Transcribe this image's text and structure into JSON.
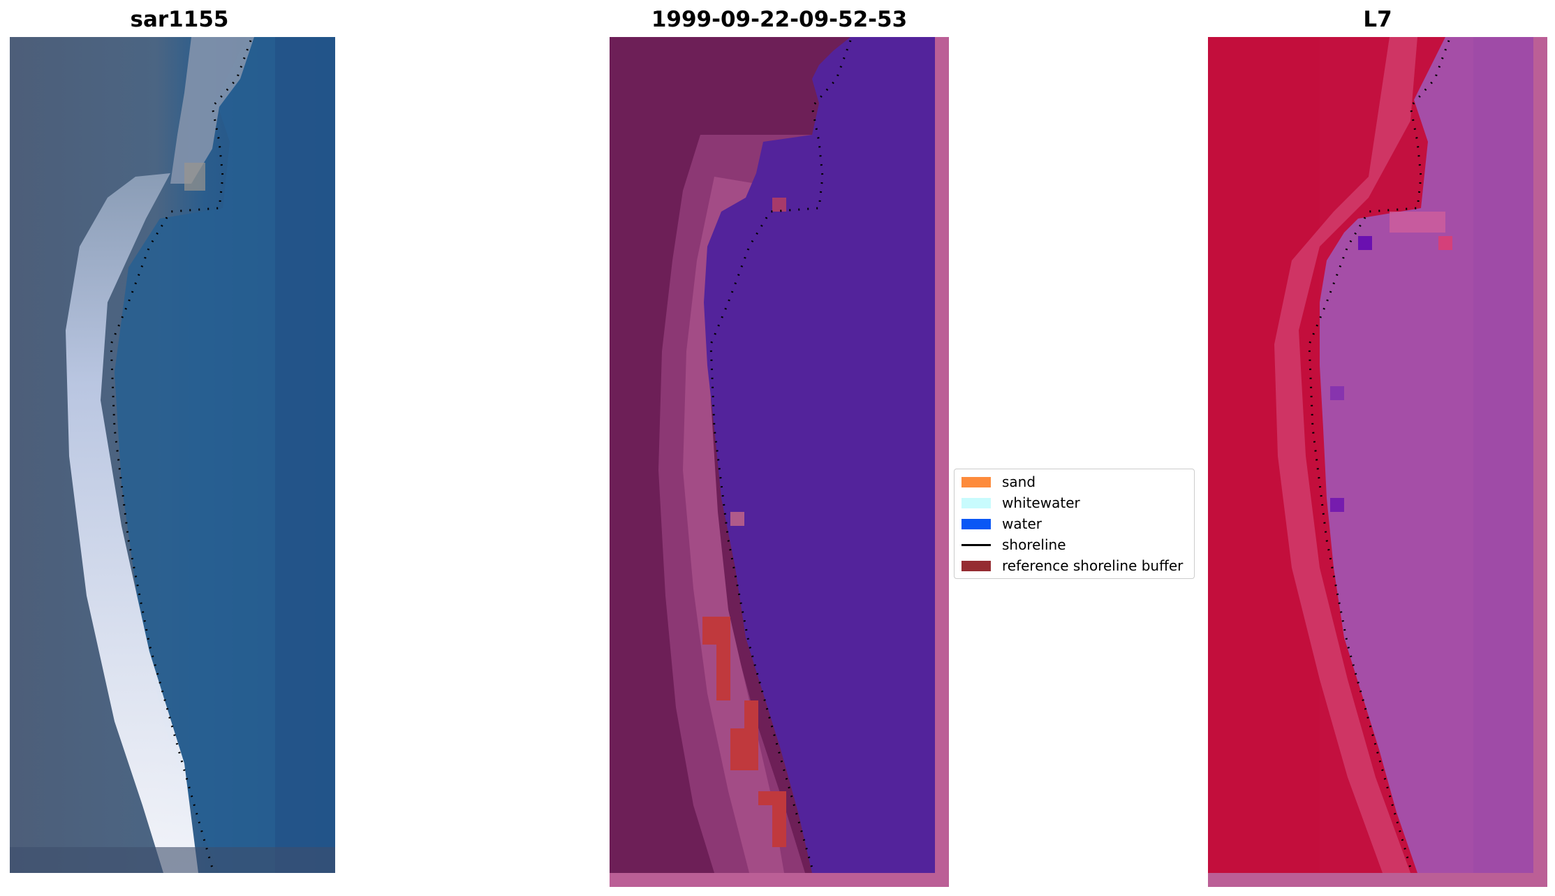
{
  "panels": [
    {
      "title": "sar1155"
    },
    {
      "title": "1999-09-22-09-52-53"
    },
    {
      "title": "L7"
    }
  ],
  "legend": {
    "items": [
      {
        "label": "sand",
        "color": "#fd8b3c"
      },
      {
        "label": "whitewater",
        "color": "#c8fbfd"
      },
      {
        "label": "water",
        "color": "#0a57f5"
      },
      {
        "label": "shoreline",
        "color": "#000000"
      },
      {
        "label": "reference shoreline buffer",
        "color": "#952c32"
      }
    ]
  },
  "colors": {
    "rgb_land": "#4c5f7a",
    "rgb_sea": "#245a8e",
    "rgb_beach": "#d8e0f0",
    "class_land": "#6d1f57",
    "class_water": "#53239b",
    "class_border": "#bb5f96",
    "class_buffer": "#c0393d",
    "nir_land": "#c3103f",
    "nir_sea": "#a54ea7"
  }
}
